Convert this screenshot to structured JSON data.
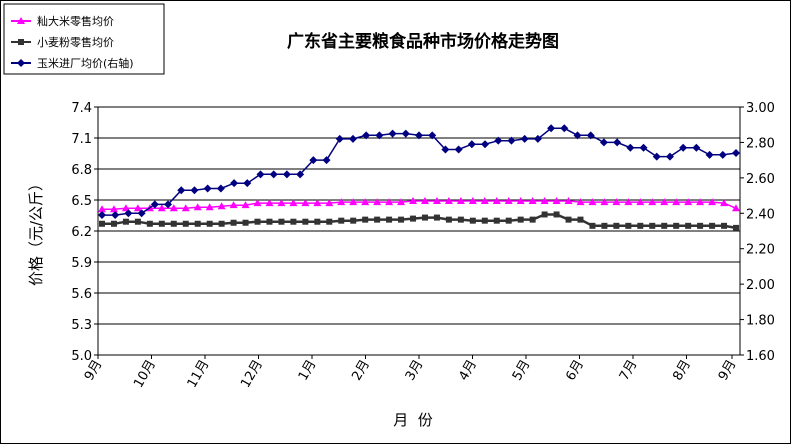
{
  "chart_data": {
    "type": "line",
    "title": "广东省主要粮食品种市场价格走势图",
    "xlabel": "月  份",
    "ylabel": "价格（元/公斤）",
    "ylim_left": [
      5.0,
      7.4
    ],
    "yticks_left": [
      "5.0",
      "5.3",
      "5.6",
      "5.9",
      "6.2",
      "6.5",
      "6.8",
      "7.1",
      "7.4"
    ],
    "ylim_right": [
      1.6,
      3.0
    ],
    "yticks_right": [
      "1.60",
      "1.80",
      "2.00",
      "2.20",
      "2.40",
      "2.60",
      "2.80",
      "3.00"
    ],
    "month_labels": [
      "9月",
      "10月",
      "11月",
      "12月",
      "1月",
      "2月",
      "3月",
      "4月",
      "5月",
      "6月",
      "7月",
      "8月",
      "9月"
    ],
    "grid": true,
    "legend_position": "top-left",
    "series": [
      {
        "name": "籼大米零售均价",
        "axis": "left",
        "color": "#ff00ff",
        "marker": "triangle",
        "values": [
          6.41,
          6.41,
          6.42,
          6.42,
          6.42,
          6.42,
          6.42,
          6.42,
          6.43,
          6.43,
          6.44,
          6.45,
          6.45,
          6.47,
          6.47,
          6.47,
          6.47,
          6.47,
          6.47,
          6.47,
          6.48,
          6.48,
          6.48,
          6.48,
          6.48,
          6.48,
          6.49,
          6.49,
          6.49,
          6.49,
          6.49,
          6.49,
          6.49,
          6.49,
          6.49,
          6.49,
          6.49,
          6.49,
          6.49,
          6.49,
          6.48,
          6.48,
          6.48,
          6.48,
          6.48,
          6.48,
          6.48,
          6.48,
          6.48,
          6.48,
          6.48,
          6.48,
          6.47,
          6.42
        ]
      },
      {
        "name": "小麦粉零售均价",
        "axis": "left",
        "color": "#333333",
        "marker": "square",
        "values": [
          6.27,
          6.27,
          6.29,
          6.29,
          6.27,
          6.27,
          6.27,
          6.27,
          6.27,
          6.27,
          6.27,
          6.28,
          6.28,
          6.29,
          6.29,
          6.29,
          6.29,
          6.29,
          6.29,
          6.29,
          6.3,
          6.3,
          6.31,
          6.31,
          6.31,
          6.31,
          6.32,
          6.33,
          6.33,
          6.31,
          6.31,
          6.3,
          6.3,
          6.3,
          6.3,
          6.31,
          6.31,
          6.36,
          6.36,
          6.31,
          6.31,
          6.25,
          6.25,
          6.25,
          6.25,
          6.25,
          6.25,
          6.25,
          6.25,
          6.25,
          6.25,
          6.25,
          6.25,
          6.23
        ]
      },
      {
        "name": "玉米进厂均价(右轴)",
        "axis": "right",
        "color": "#000080",
        "marker": "diamond",
        "values": [
          2.39,
          2.39,
          2.4,
          2.4,
          2.45,
          2.45,
          2.53,
          2.53,
          2.54,
          2.54,
          2.57,
          2.57,
          2.62,
          2.62,
          2.62,
          2.62,
          2.7,
          2.7,
          2.82,
          2.82,
          2.84,
          2.84,
          2.85,
          2.85,
          2.84,
          2.84,
          2.76,
          2.76,
          2.79,
          2.79,
          2.81,
          2.81,
          2.82,
          2.82,
          2.88,
          2.88,
          2.84,
          2.84,
          2.8,
          2.8,
          2.77,
          2.77,
          2.72,
          2.72,
          2.77,
          2.77,
          2.73,
          2.73,
          2.74
        ]
      }
    ]
  }
}
